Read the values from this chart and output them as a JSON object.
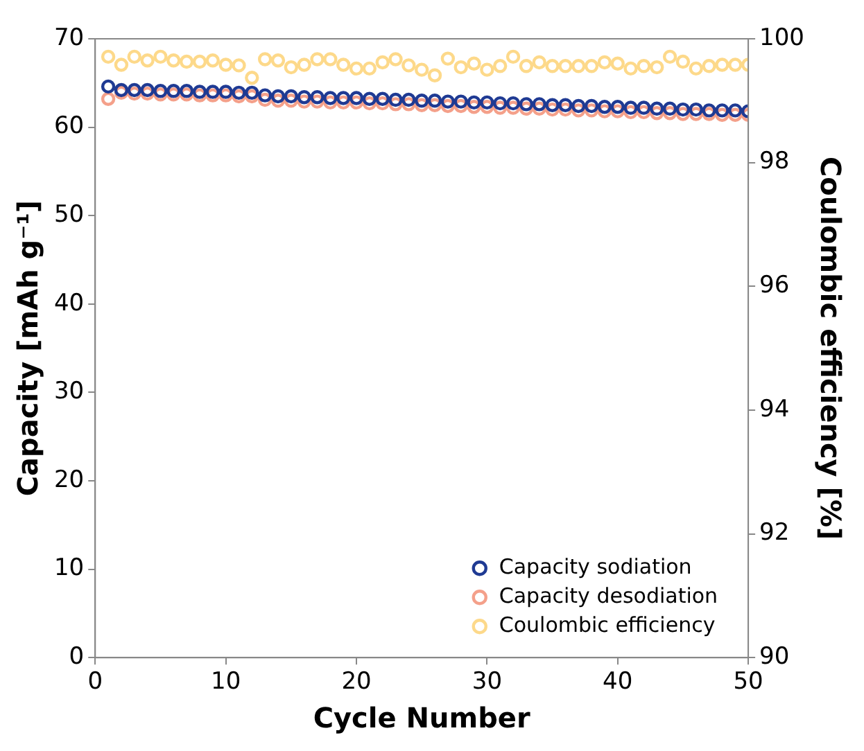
{
  "chart_data": {
    "type": "scatter",
    "xlabel": "Cycle Number",
    "ylabel": "Capacity [mAh g⁻¹]",
    "y2label": "Coulombic efficiency [%]",
    "x": [
      1,
      2,
      3,
      4,
      5,
      6,
      7,
      8,
      9,
      10,
      11,
      12,
      13,
      14,
      15,
      16,
      17,
      18,
      19,
      20,
      21,
      22,
      23,
      24,
      25,
      26,
      27,
      28,
      29,
      30,
      31,
      32,
      33,
      34,
      35,
      36,
      37,
      38,
      39,
      40,
      41,
      42,
      43,
      44,
      45,
      46,
      47,
      48,
      49,
      50
    ],
    "series": [
      {
        "name": "Capacity sodiation",
        "color": "#1f3a93",
        "values": [
          64.6,
          64.2,
          64.2,
          64.2,
          64.1,
          64.1,
          64.1,
          64.0,
          64.0,
          64.0,
          63.9,
          63.9,
          63.6,
          63.5,
          63.5,
          63.4,
          63.4,
          63.3,
          63.3,
          63.3,
          63.2,
          63.2,
          63.1,
          63.1,
          63.0,
          63.0,
          62.9,
          62.9,
          62.8,
          62.8,
          62.7,
          62.7,
          62.6,
          62.6,
          62.5,
          62.5,
          62.4,
          62.4,
          62.3,
          62.3,
          62.2,
          62.2,
          62.1,
          62.1,
          62.0,
          62.0,
          61.9,
          61.9,
          61.9,
          61.8
        ]
      },
      {
        "name": "Capacity desodiation",
        "color": "#f4a08a",
        "values": [
          63.2,
          63.9,
          63.8,
          63.8,
          63.7,
          63.7,
          63.7,
          63.6,
          63.6,
          63.6,
          63.5,
          63.5,
          63.1,
          63.0,
          63.0,
          62.9,
          62.9,
          62.8,
          62.8,
          62.8,
          62.7,
          62.7,
          62.6,
          62.6,
          62.5,
          62.5,
          62.4,
          62.4,
          62.3,
          62.3,
          62.2,
          62.2,
          62.1,
          62.1,
          62.0,
          62.0,
          61.9,
          61.9,
          61.8,
          61.8,
          61.7,
          61.7,
          61.6,
          61.6,
          61.5,
          61.5,
          61.5,
          61.4,
          61.4,
          61.4
        ]
      },
      {
        "name": "Coulombic efficiency",
        "color": "#fdd98a",
        "axis": "y2",
        "values": [
          99.71,
          99.58,
          99.71,
          99.65,
          99.71,
          99.65,
          99.63,
          99.63,
          99.65,
          99.58,
          99.57,
          99.37,
          99.67,
          99.65,
          99.54,
          99.58,
          99.67,
          99.67,
          99.58,
          99.52,
          99.52,
          99.62,
          99.67,
          99.57,
          99.5,
          99.41,
          99.68,
          99.54,
          99.6,
          99.5,
          99.56,
          99.71,
          99.56,
          99.62,
          99.56,
          99.56,
          99.56,
          99.56,
          99.62,
          99.6,
          99.52,
          99.56,
          99.54,
          99.71,
          99.63,
          99.52,
          99.56,
          99.58,
          99.58,
          99.58
        ]
      }
    ],
    "xlim": [
      0,
      50
    ],
    "xticks": [
      0,
      10,
      20,
      30,
      40,
      50
    ],
    "ylim": [
      0,
      70
    ],
    "yticks": [
      0,
      10,
      20,
      30,
      40,
      50,
      60,
      70
    ],
    "y2lim": [
      90,
      100
    ],
    "y2ticks": [
      90,
      92,
      94,
      96,
      98,
      100
    ],
    "grid": false,
    "legend": "bottom right",
    "marker": "circle"
  }
}
